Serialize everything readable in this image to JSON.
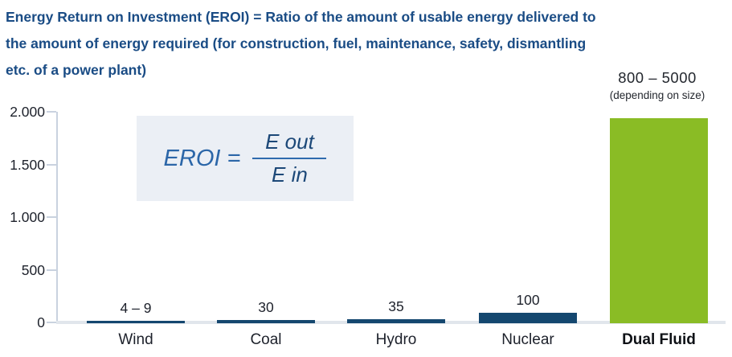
{
  "title": {
    "lines": [
      "Energy Return on Investment (EROI) = Ratio of the amount of usable energy delivered to",
      "the amount of energy required (for construction, fuel, maintenance, safety, dismantling",
      "etc. of a power plant)"
    ]
  },
  "formula": {
    "lhs": "EROI =",
    "numerator": "E out",
    "denominator": "E in"
  },
  "annotation": {
    "range": "800 – 5000",
    "note": "(depending on size)"
  },
  "colors": {
    "title_blue": "#1a4c85",
    "bar_navy": "#14476F",
    "bar_green": "#8ABC25",
    "axis_light": "#c9d2df",
    "baseline_light": "#e1e6ec",
    "formula_bg": "#ebeff5"
  },
  "chart_data": {
    "type": "bar",
    "title": "Energy Return on Investment (EROI)",
    "categories": [
      "Wind",
      "Coal",
      "Hydro",
      "Nuclear",
      "Dual Fluid"
    ],
    "values": [
      "4–9",
      30,
      35,
      100,
      "800–5000"
    ],
    "values_drawn": [
      6.5,
      30,
      35,
      100,
      1950
    ],
    "value_labels": [
      "4 – 9",
      "30",
      "35",
      "100",
      ""
    ],
    "bar_colors": [
      "#14476F",
      "#14476F",
      "#14476F",
      "#14476F",
      "#8ABC25"
    ],
    "category_bold": [
      false,
      false,
      false,
      false,
      true
    ],
    "xlabel": "",
    "ylabel": "",
    "ylim": [
      0,
      2000
    ],
    "yticks": [
      0,
      500,
      1000,
      1500,
      2000
    ],
    "ytick_labels": [
      "0",
      "500",
      "1.000",
      "1.500",
      "2.000"
    ],
    "grid": false,
    "legend": null,
    "note": "Dual Fluid bar clipped at top of axis; true value 800–5000 depending on size"
  }
}
